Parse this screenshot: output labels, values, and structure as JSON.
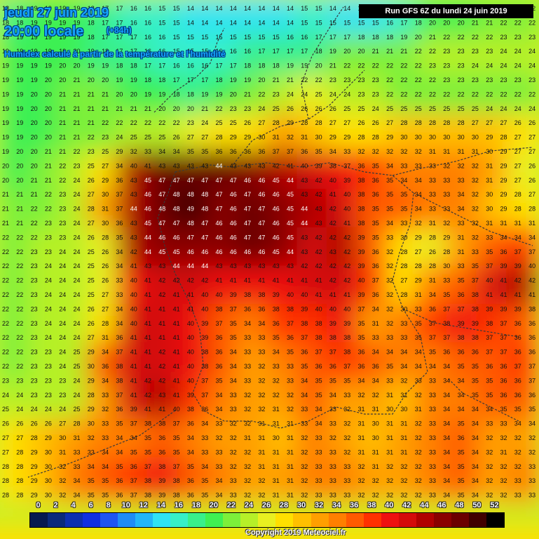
{
  "header": {
    "date": "jeudi 27 juin 2019",
    "time": "20:00 locale",
    "lead": "(+84h)",
    "description": "Humidex calculé à partir de la température et l'humidité"
  },
  "run_label": "Run GFS 6Z du lundi 24 juin 2019",
  "legend": {
    "labels": [
      "0",
      "2",
      "4",
      "6",
      "8",
      "10",
      "12",
      "14",
      "16",
      "18",
      "20",
      "22",
      "24",
      "26",
      "28",
      "30",
      "32",
      "34",
      "36",
      "38",
      "40",
      "42",
      "44",
      "46",
      "48",
      "50",
      "52"
    ],
    "colors": [
      "#061a4f",
      "#0a2a7a",
      "#0c2fb0",
      "#1030e0",
      "#1f55f0",
      "#1f8cf5",
      "#22b6f7",
      "#2fe3f3",
      "#36f0c8",
      "#38f08a",
      "#3ef052",
      "#7cf03a",
      "#b6f028",
      "#e9f020",
      "#ffe000",
      "#ffc000",
      "#ff9f00",
      "#ff7f00",
      "#ff5a00",
      "#ff3000",
      "#ee1010",
      "#d40a0a",
      "#b00000",
      "#8a0000",
      "#6b0000",
      "#400000",
      "#000000"
    ]
  },
  "copyright": "Copyright 2019 Meteociel.fr",
  "map_values": [
    [
      18,
      19,
      19,
      17,
      16,
      15,
      14,
      14,
      14,
      14,
      15,
      14,
      14,
      16,
      20,
      20,
      21,
      22
    ],
    [
      19,
      19,
      20,
      18,
      17,
      16,
      15,
      16,
      17,
      17,
      18,
      21,
      22,
      22,
      23,
      24,
      24,
      24
    ],
    [
      19,
      20,
      21,
      21,
      20,
      19,
      18,
      20,
      21,
      24,
      25,
      24,
      23,
      22,
      22,
      22,
      22,
      22
    ],
    [
      19,
      20,
      21,
      22,
      23,
      23,
      25,
      27,
      28,
      31,
      29,
      28,
      27,
      30,
      30,
      30,
      29,
      27
    ],
    [
      20,
      21,
      23,
      28,
      44,
      47,
      47,
      47,
      46,
      44,
      42,
      39,
      37,
      34,
      33,
      33,
      31,
      26
    ],
    [
      21,
      22,
      24,
      31,
      44,
      48,
      49,
      46,
      47,
      46,
      43,
      41,
      35,
      35,
      33,
      34,
      29,
      28
    ],
    [
      22,
      23,
      24,
      26,
      43,
      45,
      46,
      46,
      47,
      45,
      42,
      43,
      36,
      28,
      25,
      31,
      35,
      37
    ],
    [
      22,
      24,
      24,
      26,
      40,
      42,
      41,
      40,
      39,
      40,
      41,
      42,
      38,
      27,
      33,
      36,
      42,
      43
    ],
    [
      22,
      24,
      24,
      28,
      41,
      41,
      40,
      36,
      33,
      37,
      38,
      40,
      31,
      33,
      38,
      39,
      38,
      35
    ],
    [
      22,
      23,
      24,
      36,
      41,
      42,
      40,
      35,
      32,
      33,
      36,
      37,
      36,
      34,
      34,
      35,
      36,
      37
    ],
    [
      24,
      23,
      23,
      32,
      41,
      43,
      38,
      33,
      32,
      31,
      35,
      32,
      31,
      30,
      33,
      34,
      35,
      36
    ],
    [
      27,
      29,
      32,
      33,
      34,
      35,
      33,
      32,
      31,
      30,
      33,
      32,
      30,
      31,
      33,
      36,
      31,
      32
    ],
    [
      28,
      30,
      34,
      35,
      37,
      39,
      36,
      33,
      32,
      31,
      33,
      33,
      32,
      32,
      33,
      35,
      31,
      33
    ]
  ]
}
